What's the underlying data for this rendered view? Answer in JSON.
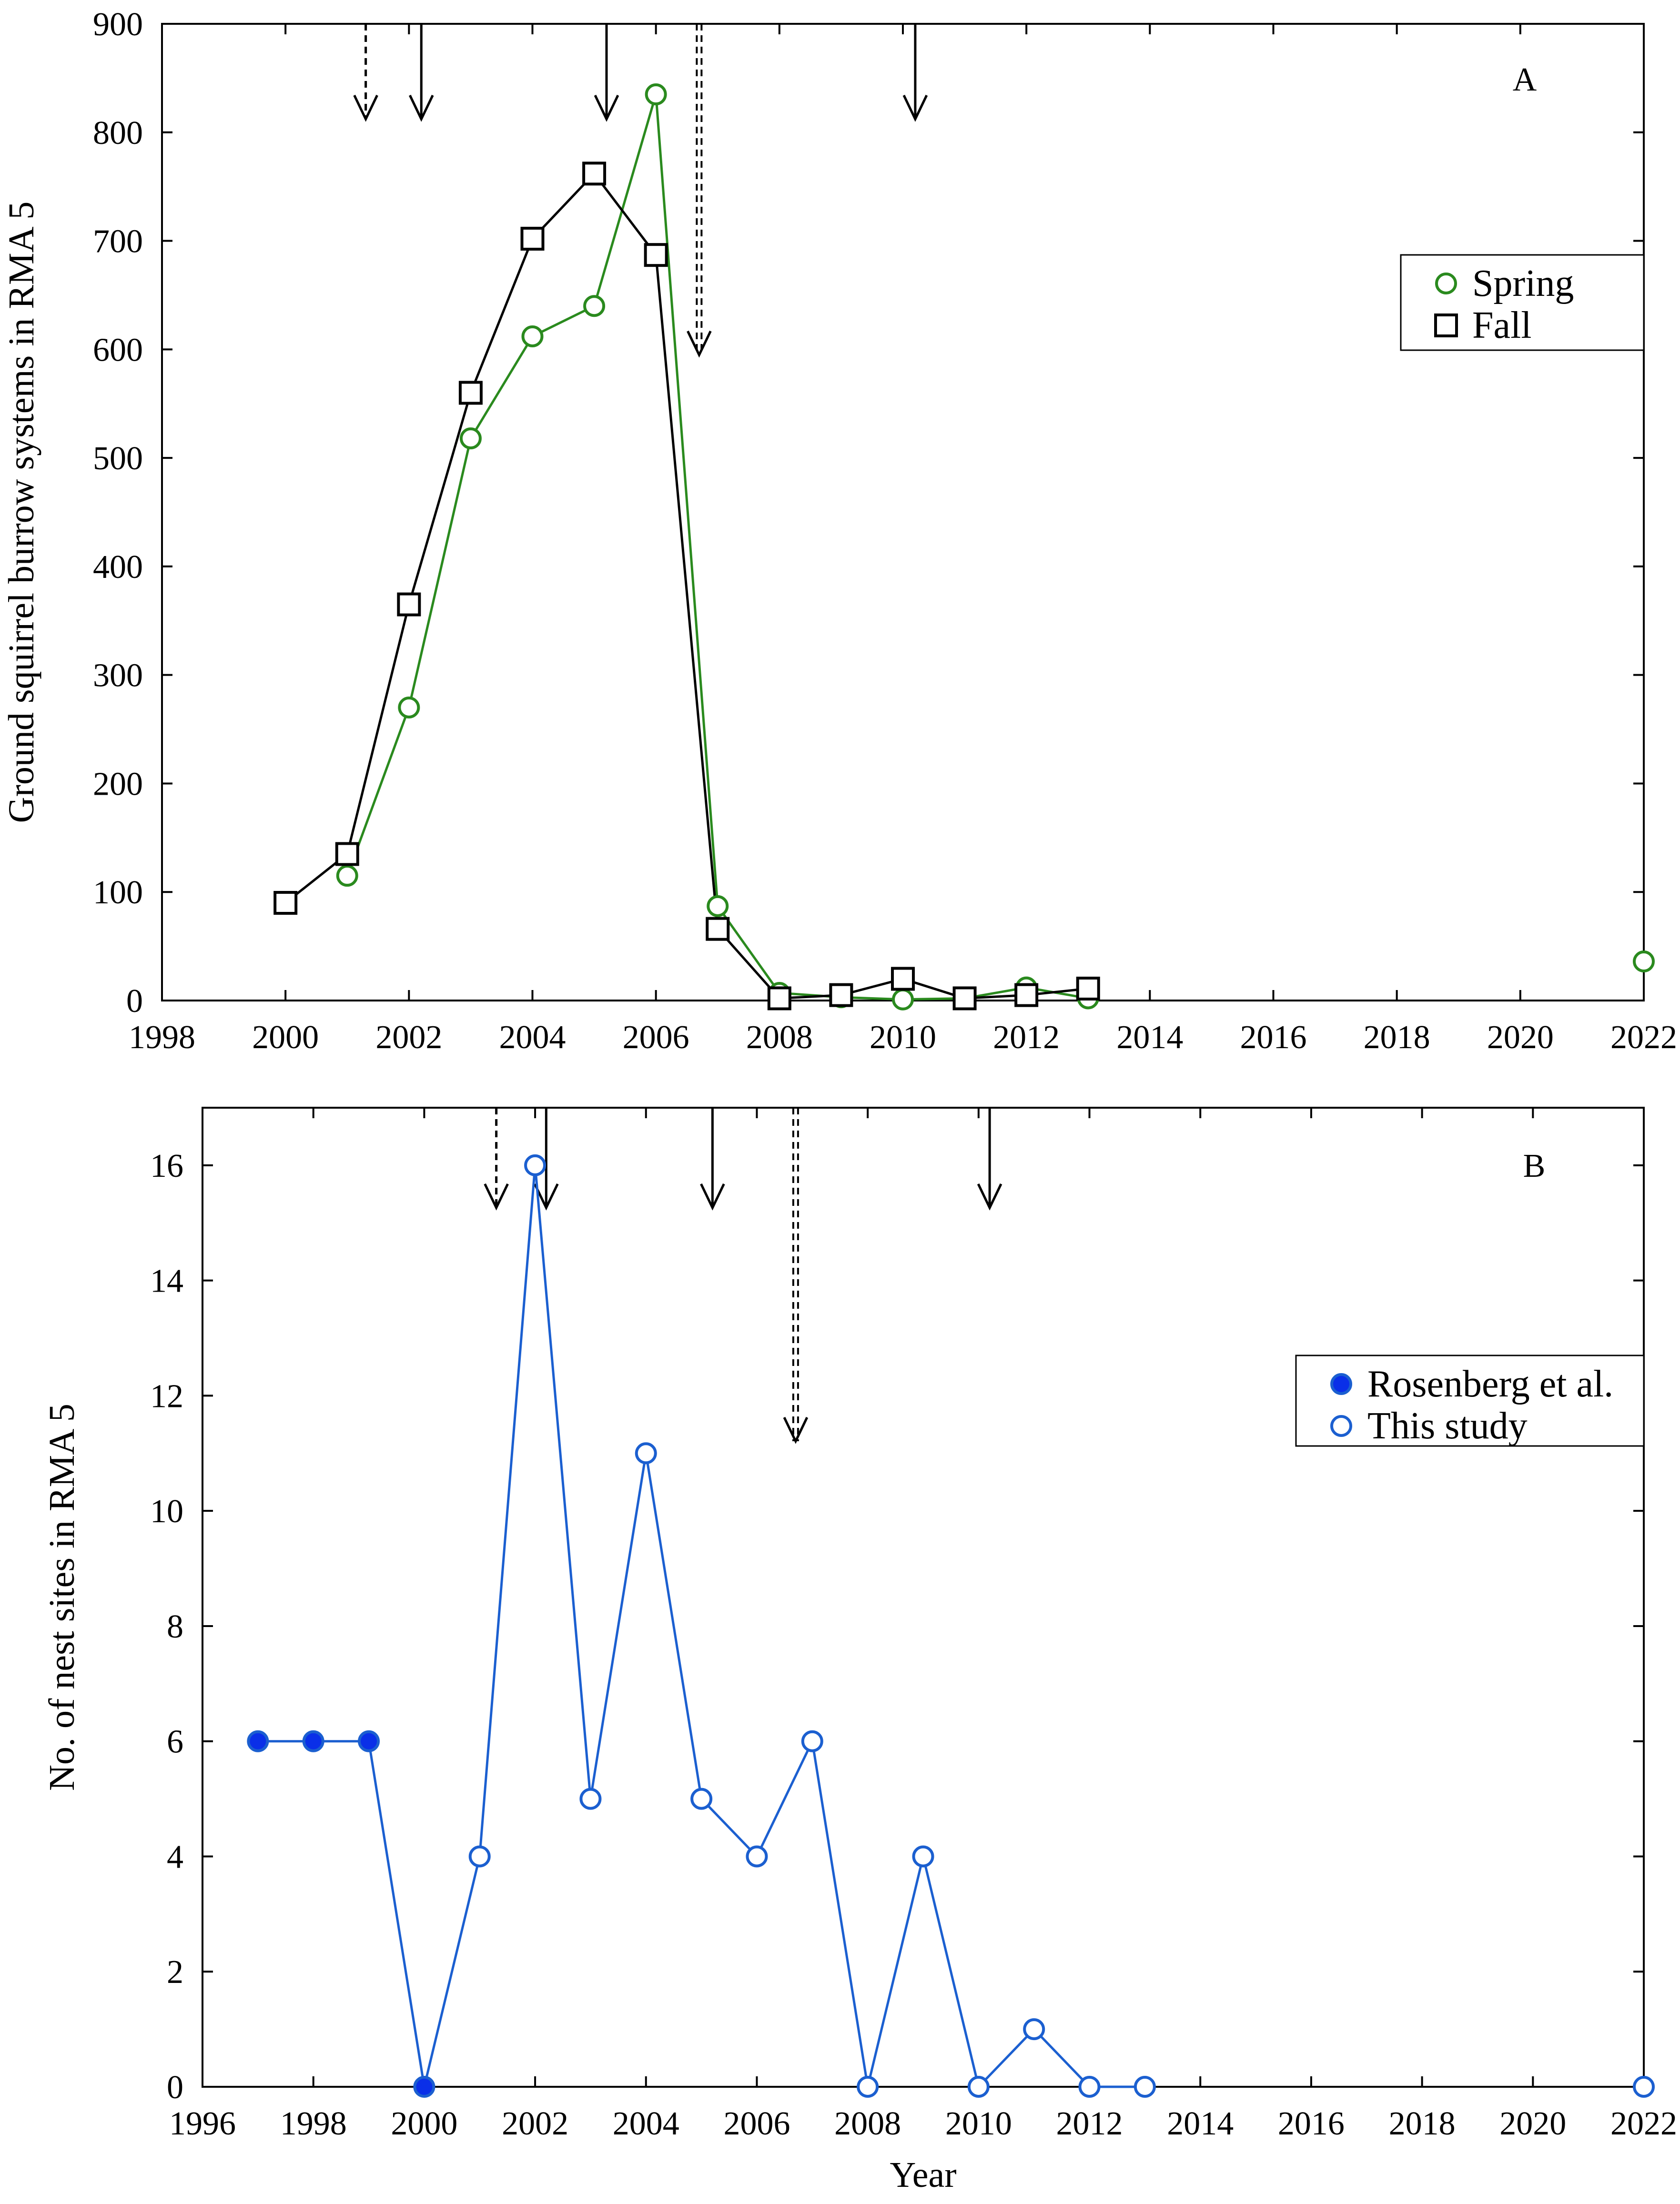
{
  "colors": {
    "spring": "#2a8a1e",
    "fall": "#000000",
    "nest": "#1b5fd0",
    "nest_fill": "#0a2fe8",
    "arrow": "#000000"
  },
  "chart_data": [
    {
      "panel": "A",
      "type": "line",
      "title": "",
      "xlabel": "",
      "ylabel": "Ground squirrel burrow systems in RMA 5",
      "xlim": [
        1998,
        2022
      ],
      "ylim": [
        0,
        900
      ],
      "xticks": [
        1998,
        2000,
        2002,
        2004,
        2006,
        2008,
        2010,
        2012,
        2014,
        2016,
        2018,
        2020,
        2022
      ],
      "yticks": [
        0,
        100,
        200,
        300,
        400,
        500,
        600,
        700,
        800,
        900
      ],
      "grid": false,
      "legend_position": "upper-right",
      "series": [
        {
          "name": "Spring",
          "marker": "circle-open",
          "color_key": "spring",
          "x": [
            2001,
            2002,
            2003,
            2004,
            2005,
            2006,
            2007,
            2008,
            2009,
            2010,
            2011,
            2012,
            2013
          ],
          "y": [
            115,
            270,
            518,
            612,
            640,
            835,
            87,
            7,
            3,
            1,
            2,
            12,
            2
          ],
          "extra_points": [
            {
              "x": 2022,
              "y": 36
            }
          ]
        },
        {
          "name": "Fall",
          "marker": "square-open",
          "color_key": "fall",
          "x": [
            2000,
            2001,
            2002,
            2003,
            2004,
            2005,
            2006,
            2007,
            2008,
            2009,
            2010,
            2011,
            2012,
            2013
          ],
          "y": [
            90,
            135,
            365,
            560,
            702,
            762,
            687,
            66,
            2,
            5,
            20,
            2,
            5,
            11
          ]
        }
      ],
      "arrows": [
        {
          "year": 2001.3,
          "style": "dashed"
        },
        {
          "year": 2002.2,
          "style": "solid"
        },
        {
          "year": 2005.2,
          "style": "solid"
        },
        {
          "year": 2006.7,
          "style": "dashed",
          "long": true
        },
        {
          "year": 2010.2,
          "style": "solid"
        }
      ]
    },
    {
      "panel": "B",
      "type": "line",
      "title": "",
      "xlabel": "Year",
      "ylabel": "No. of nest sites in RMA 5",
      "xlim": [
        1996,
        2022
      ],
      "ylim": [
        0,
        17
      ],
      "xticks": [
        1996,
        1998,
        2000,
        2002,
        2004,
        2006,
        2008,
        2010,
        2012,
        2014,
        2016,
        2018,
        2020,
        2022
      ],
      "yticks": [
        0,
        2,
        4,
        6,
        8,
        10,
        12,
        14,
        16
      ],
      "grid": false,
      "legend_position": "upper-right",
      "series": [
        {
          "name": "Rosenberg et al.",
          "marker": "circle-filled",
          "color_key": "nest",
          "x": [
            1997,
            1998,
            1999,
            2000
          ],
          "y": [
            6,
            6,
            6,
            0
          ]
        },
        {
          "name": "This study",
          "marker": "circle-open",
          "color_key": "nest",
          "x": [
            2001,
            2002,
            2003,
            2004,
            2005,
            2006,
            2007,
            2008,
            2009,
            2010,
            2011,
            2012,
            2013
          ],
          "y": [
            4,
            16,
            5,
            11,
            5,
            4,
            6,
            0,
            4,
            0,
            1,
            0,
            0
          ],
          "extra_points": [
            {
              "x": 2022,
              "y": 0
            }
          ]
        }
      ],
      "arrows": [
        {
          "year": 2001.3,
          "style": "dashed"
        },
        {
          "year": 2002.2,
          "style": "solid"
        },
        {
          "year": 2005.2,
          "style": "solid"
        },
        {
          "year": 2006.7,
          "style": "dashed",
          "long": true
        },
        {
          "year": 2010.2,
          "style": "solid"
        }
      ]
    }
  ]
}
